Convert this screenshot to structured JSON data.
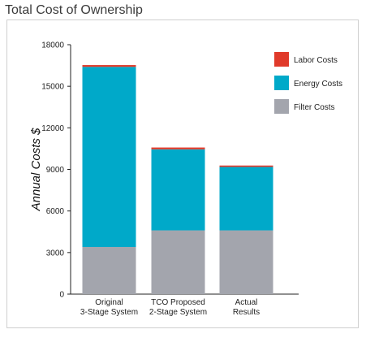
{
  "title": "Total Cost of Ownership",
  "chart_data": {
    "type": "bar",
    "stacked": true,
    "title": "Total Cost of Ownership",
    "ylabel": "Annual Costs $",
    "xlabel": "",
    "ylim": [
      0,
      18000
    ],
    "yticks": [
      0,
      3000,
      6000,
      9000,
      12000,
      15000,
      18000
    ],
    "categories": [
      [
        "Original",
        "3-Stage System"
      ],
      [
        "TCO Proposed",
        "2-Stage System"
      ],
      [
        "Actual",
        "Results"
      ]
    ],
    "series": [
      {
        "name": "Filter Costs",
        "color": "#a3a5ad",
        "values": [
          3400,
          4600,
          4600
        ]
      },
      {
        "name": "Energy Costs",
        "color": "#00a9c9",
        "values": [
          13000,
          5850,
          4580
        ]
      },
      {
        "name": "Labor Costs",
        "color": "#e03a2a",
        "values": [
          130,
          130,
          100
        ]
      }
    ],
    "legend_order": [
      "Labor Costs",
      "Energy Costs",
      "Filter Costs"
    ],
    "legend_position": "top-right",
    "grid": false
  }
}
